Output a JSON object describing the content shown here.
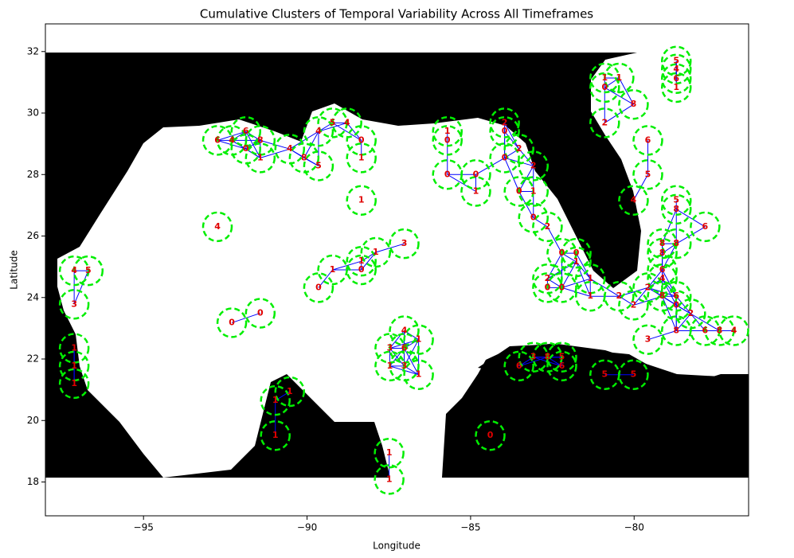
{
  "chart_data": {
    "type": "scatter",
    "title": "Cumulative Clusters of Temporal Variability Across All Timeframes",
    "x_label": "Longitude",
    "y_label": "Latitude",
    "xlim": [
      -98,
      -76.5
    ],
    "ylim": [
      16.9,
      32.9
    ],
    "xticks": [
      {
        "value": -95,
        "label": "−95"
      },
      {
        "value": -90,
        "label": "−90"
      },
      {
        "value": -85,
        "label": "−85"
      },
      {
        "value": -80,
        "label": "−80"
      }
    ],
    "yticks": [
      18,
      20,
      22,
      24,
      26,
      28,
      30,
      32
    ],
    "marker_color": "#00ee00",
    "label_color": "#e00000",
    "edge_color": "#0000ff",
    "x": [
      -97.12,
      -96.69,
      -97.12,
      -97.12,
      -97.12,
      -97.12,
      -92.74,
      -92.3,
      -91.43,
      -90.97,
      -90.53,
      -90.97,
      -87.49,
      -87.49,
      -84.4,
      -89.65,
      -89.22,
      -88.34,
      -88.34,
      -87.9,
      -87.03,
      -88.34,
      -92.74,
      -92.3,
      -91.87,
      -91.43,
      -91.87,
      -91.43,
      -90.53,
      -90.09,
      -89.65,
      -89.65,
      -89.22,
      -88.78,
      -88.34,
      -88.34,
      -85.71,
      -85.71,
      -83.96,
      -83.96,
      -83.52,
      -83.96,
      -83.08,
      -85.71,
      -84.84,
      -84.84,
      -83.52,
      -83.08,
      -83.08,
      -82.65,
      -82.21,
      -81.77,
      -81.77,
      -82.65,
      -82.65,
      -82.21,
      -81.34,
      -81.34,
      -80.46,
      -80.02,
      -80.9,
      -80.9,
      -80.46,
      -80.02,
      -80.9,
      -78.71,
      -78.71,
      -78.71,
      -78.71,
      -79.58,
      -79.58,
      -80.02,
      -78.71,
      -78.71,
      -77.83,
      -79.14,
      -78.71,
      -79.14,
      -79.14,
      -79.14,
      -79.58,
      -79.14,
      -78.71,
      -78.71,
      -78.27,
      -78.71,
      -77.83,
      -77.39,
      -76.95,
      -79.58,
      -83.52,
      -83.08,
      -82.65,
      -82.21,
      -82.21,
      -80.9,
      -80.02,
      -87.03,
      -86.59,
      -87.47,
      -87.03,
      -87.47,
      -87.03,
      -86.59
    ],
    "y": [
      24.87,
      24.87,
      23.78,
      22.35,
      21.77,
      21.2,
      26.3,
      23.18,
      23.49,
      20.65,
      20.94,
      19.51,
      18.94,
      18.08,
      19.51,
      24.32,
      24.9,
      24.9,
      25.18,
      25.47,
      25.75,
      27.16,
      29.11,
      29.11,
      29.4,
      29.11,
      28.83,
      28.54,
      28.83,
      28.54,
      28.28,
      29.4,
      29.68,
      29.68,
      29.11,
      28.54,
      29.4,
      29.11,
      29.68,
      29.4,
      28.83,
      28.54,
      28.28,
      28.0,
      28.0,
      27.45,
      27.45,
      27.45,
      26.59,
      26.3,
      25.44,
      25.44,
      25.16,
      24.61,
      24.32,
      24.32,
      24.61,
      24.04,
      24.04,
      23.75,
      31.14,
      30.83,
      31.14,
      30.28,
      29.68,
      31.69,
      31.43,
      31.12,
      30.83,
      29.11,
      28.0,
      27.16,
      27.16,
      26.87,
      26.3,
      25.75,
      25.75,
      25.44,
      24.9,
      24.61,
      24.32,
      24.04,
      24.04,
      23.75,
      23.47,
      22.92,
      22.92,
      22.92,
      22.92,
      22.63,
      21.77,
      22.06,
      22.06,
      22.06,
      21.77,
      21.49,
      21.49,
      22.92,
      22.63,
      22.35,
      22.35,
      21.77,
      21.77,
      21.49
    ],
    "values": [
      4,
      5,
      3,
      1,
      1,
      1,
      4,
      0,
      0,
      1,
      1,
      1,
      1,
      1,
      0,
      0,
      1,
      0,
      1,
      1,
      3,
      1,
      6,
      4,
      6,
      8,
      0,
      1,
      4,
      8,
      5,
      4,
      5,
      4,
      0,
      1,
      1,
      0,
      2,
      0,
      2,
      0,
      2,
      0,
      0,
      1,
      0,
      1,
      0,
      2,
      0,
      0,
      1,
      2,
      0,
      0,
      1,
      1,
      2,
      2,
      1,
      0,
      1,
      8,
      2,
      5,
      4,
      6,
      1,
      6,
      5,
      4,
      5,
      8,
      6,
      8,
      8,
      8,
      6,
      4,
      2,
      8,
      6,
      0,
      2,
      8,
      6,
      8,
      4,
      3,
      6,
      3,
      8,
      5,
      6,
      5,
      5,
      4,
      1,
      3,
      6,
      1,
      3,
      1
    ]
  }
}
